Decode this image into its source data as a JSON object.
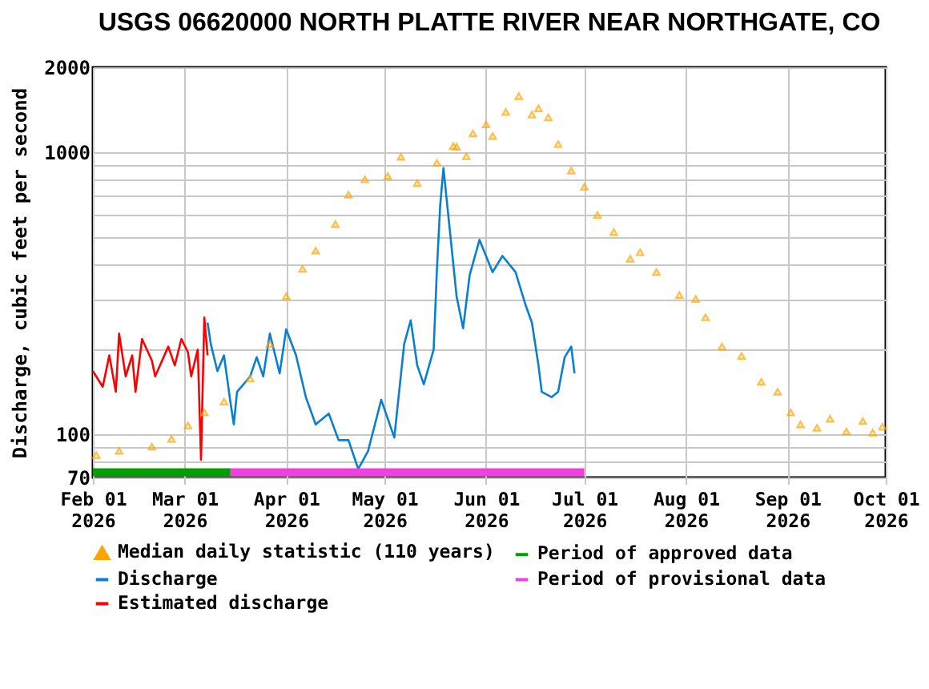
{
  "chart_data": {
    "type": "line",
    "title": "USGS 06620000 NORTH PLATTE RIVER NEAR NORTHGATE, CO",
    "ylabel": "Discharge, cubic feet per second",
    "log": "y",
    "grid": true,
    "legend": "bottom",
    "xlim": [
      "2026-02-01",
      "2026-10-01"
    ],
    "xticks": [
      {
        "value": "2026-02-01",
        "label": "Feb 01\n2026"
      },
      {
        "value": "2026-03-01",
        "label": "Mar 01\n2026"
      },
      {
        "value": "2026-04-01",
        "label": "Apr 01\n2026"
      },
      {
        "value": "2026-05-01",
        "label": "May 01\n2026"
      },
      {
        "value": "2026-06-01",
        "label": "Jun 01\n2026"
      },
      {
        "value": "2026-07-01",
        "label": "Jul 01\n2026"
      },
      {
        "value": "2026-08-01",
        "label": "Aug 01\n2026"
      },
      {
        "value": "2026-09-01",
        "label": "Sep 01\n2026"
      },
      {
        "value": "2026-10-01",
        "label": "Oct 01\n2026"
      }
    ],
    "ylim": [
      70,
      2000
    ],
    "yticks": [
      70,
      {
        "value": 80,
        "label": null
      },
      {
        "value": 90,
        "label": null
      },
      100,
      {
        "value": 200,
        "label": null
      },
      {
        "value": 300,
        "label": null
      },
      {
        "value": 400,
        "label": null
      },
      {
        "value": 500,
        "label": null
      },
      {
        "value": 600,
        "label": null
      },
      {
        "value": 700,
        "label": null
      },
      {
        "value": 800,
        "label": null
      },
      {
        "value": 900,
        "label": null
      },
      1000,
      2000
    ],
    "series": [
      {
        "name": "Median daily statistic (110 years)",
        "type": "scatter",
        "marker": "triangle",
        "color": "#ffa500",
        "x": [
          "2026-02-02",
          "2026-02-09",
          "2026-02-19",
          "2026-02-25",
          "2026-03-02",
          "2026-03-07",
          "2026-03-13",
          "2026-03-21",
          "2026-03-27",
          "2026-04-01",
          "2026-04-06",
          "2026-04-10",
          "2026-04-16",
          "2026-04-20",
          "2026-04-25",
          "2026-05-02",
          "2026-05-06",
          "2026-05-11",
          "2026-05-17",
          "2026-05-22",
          "2026-05-23",
          "2026-05-26",
          "2026-05-28",
          "2026-06-01",
          "2026-06-03",
          "2026-06-07",
          "2026-06-11",
          "2026-06-15",
          "2026-06-17",
          "2026-06-20",
          "2026-06-23",
          "2026-06-27",
          "2026-07-01",
          "2026-07-05",
          "2026-07-10",
          "2026-07-15",
          "2026-07-18",
          "2026-07-23",
          "2026-07-30",
          "2026-08-04",
          "2026-08-07",
          "2026-08-12",
          "2026-08-18",
          "2026-08-24",
          "2026-08-29",
          "2026-09-02",
          "2026-09-05",
          "2026-09-10",
          "2026-09-14",
          "2026-09-19",
          "2026-09-24",
          "2026-09-27",
          "2026-09-30"
        ],
        "values": [
          84,
          87,
          90,
          96,
          107,
          119,
          130,
          157,
          208,
          308,
          385,
          447,
          555,
          706,
          800,
          822,
          962,
          776,
          916,
          1050,
          1044,
          966,
          1165,
          1254,
          1140,
          1387,
          1580,
          1358,
          1430,
          1327,
          1067,
          859,
          753,
          598,
          520,
          418,
          441,
          375,
          311,
          301,
          259,
          204,
          189,
          153,
          141,
          119,
          108,
          105,
          113,
          102,
          111,
          101,
          106
        ]
      },
      {
        "name": "Period of approved data",
        "type": "step",
        "color": "#00a000",
        "x": [
          "2026-02-01",
          "2026-03-15"
        ],
        "values": [
          73,
          73
        ]
      },
      {
        "name": "Discharge",
        "color": "#0a7fd0",
        "x": [
          "2026-03-08",
          "2026-03-09",
          "2026-03-11",
          "2026-03-13",
          "2026-03-15",
          "2026-03-16",
          "2026-03-17",
          "2026-03-21",
          "2026-03-23",
          "2026-03-25",
          "2026-03-27",
          "2026-03-30",
          "2026-04-01",
          "2026-04-04",
          "2026-04-07",
          "2026-04-10",
          "2026-04-14",
          "2026-04-17",
          "2026-04-20",
          "2026-04-23",
          "2026-04-26",
          "2026-04-30",
          "2026-05-04",
          "2026-05-07",
          "2026-05-09",
          "2026-05-11",
          "2026-05-13",
          "2026-05-16",
          "2026-05-17",
          "2026-05-18",
          "2026-05-19",
          "2026-05-21",
          "2026-05-23",
          "2026-05-25",
          "2026-05-27",
          "2026-05-30",
          "2026-06-03",
          "2026-06-06",
          "2026-06-10",
          "2026-06-13",
          "2026-06-15",
          "2026-06-17",
          "2026-06-18",
          "2026-06-21",
          "2026-06-23",
          "2026-06-25",
          "2026-06-27",
          "2026-06-28"
        ],
        "values": [
          248,
          208,
          167,
          190,
          129,
          108,
          141,
          160,
          187,
          160,
          227,
          164,
          235,
          190,
          135,
          108,
          118,
          95,
          95,
          75,
          87,
          132,
          97,
          208,
          253,
          175,
          150,
          199,
          383,
          647,
          878,
          520,
          308,
          237,
          366,
          488,
          375,
          428,
          375,
          288,
          248,
          175,
          141,
          135,
          141,
          187,
          204,
          164
        ]
      },
      {
        "name": "Period of provisional data",
        "type": "step",
        "color": "#f040e0",
        "x": [
          "2026-03-15",
          "2026-07-01"
        ],
        "values": [
          73,
          73
        ]
      },
      {
        "name": "Estimated discharge",
        "color": "#ff0000",
        "x": [
          "2026-02-01",
          "2026-02-04",
          "2026-02-06",
          "2026-02-08",
          "2026-02-09",
          "2026-02-11",
          "2026-02-13",
          "2026-02-14",
          "2026-02-16",
          "2026-02-19",
          "2026-02-20",
          "2026-02-24",
          "2026-02-26",
          "2026-02-28",
          "2026-03-02",
          "2026-03-03",
          "2026-03-05",
          "2026-03-06",
          "2026-03-07",
          "2026-03-08"
        ],
        "values": [
          167,
          147,
          190,
          141,
          227,
          160,
          190,
          141,
          217,
          182,
          160,
          204,
          175,
          217,
          195,
          160,
          199,
          81,
          259,
          190
        ]
      }
    ]
  }
}
